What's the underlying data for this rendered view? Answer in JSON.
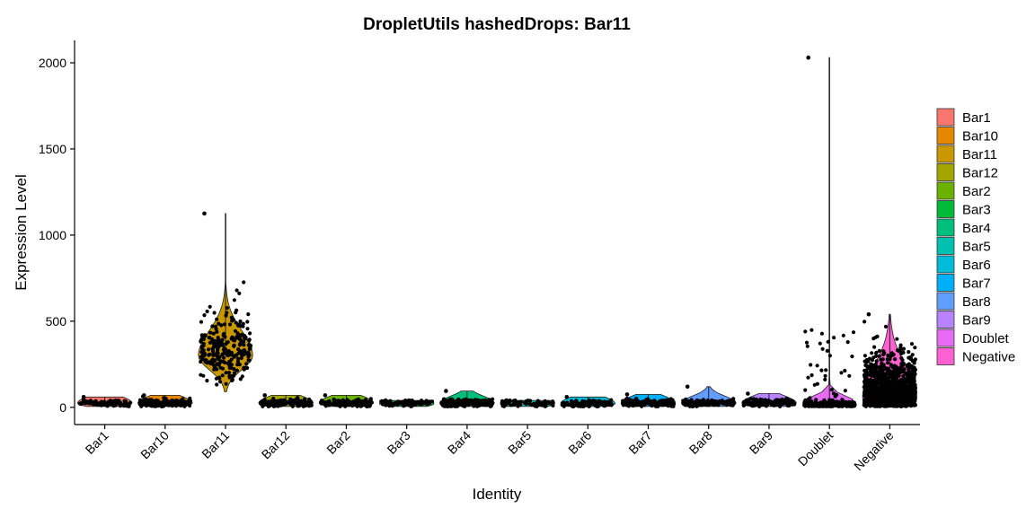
{
  "chart_data": {
    "type": "violin",
    "title": "DropletUtils hashedDrops: Bar11",
    "xlabel": "Identity",
    "ylabel": "Expression Level",
    "ylim": [
      -100,
      2130
    ],
    "y_ticks": [
      0,
      500,
      1000,
      1500,
      2000
    ],
    "categories": [
      "Bar1",
      "Bar10",
      "Bar11",
      "Bar12",
      "Bar2",
      "Bar3",
      "Bar4",
      "Bar5",
      "Bar6",
      "Bar7",
      "Bar8",
      "Bar9",
      "Doublet",
      "Negative"
    ],
    "colors": [
      "#F8766D",
      "#E58700",
      "#C99800",
      "#A3A500",
      "#6BB100",
      "#00BA38",
      "#00BF7D",
      "#00C0AF",
      "#00BCD8",
      "#00B0F6",
      "#619CFF",
      "#B983FF",
      "#E76BF3",
      "#FD61D1"
    ],
    "series": [
      {
        "name": "Bar1",
        "min": 5,
        "max": 60,
        "median": 25,
        "n": 100
      },
      {
        "name": "Bar10",
        "min": 5,
        "max": 70,
        "median": 25,
        "n": 180
      },
      {
        "name": "Bar11",
        "min": 90,
        "max": 1125,
        "median": 300,
        "n": 260
      },
      {
        "name": "Bar12",
        "min": 5,
        "max": 70,
        "median": 25,
        "n": 160
      },
      {
        "name": "Bar2",
        "min": 5,
        "max": 70,
        "median": 25,
        "n": 160
      },
      {
        "name": "Bar3",
        "min": 5,
        "max": 40,
        "median": 22,
        "n": 90
      },
      {
        "name": "Bar4",
        "min": 5,
        "max": 95,
        "median": 25,
        "n": 260
      },
      {
        "name": "Bar5",
        "min": 5,
        "max": 40,
        "median": 22,
        "n": 70
      },
      {
        "name": "Bar6",
        "min": 5,
        "max": 60,
        "median": 22,
        "n": 100
      },
      {
        "name": "Bar7",
        "min": 5,
        "max": 75,
        "median": 25,
        "n": 200
      },
      {
        "name": "Bar8",
        "min": 5,
        "max": 120,
        "median": 25,
        "n": 160
      },
      {
        "name": "Bar9",
        "min": 5,
        "max": 80,
        "median": 25,
        "n": 200
      },
      {
        "name": "Doublet",
        "min": 5,
        "max": 2030,
        "median": 25,
        "n": 300
      },
      {
        "name": "Negative",
        "min": 5,
        "max": 540,
        "median": 60,
        "n": 1200
      }
    ]
  },
  "legend": {
    "entries": [
      "Bar1",
      "Bar10",
      "Bar11",
      "Bar12",
      "Bar2",
      "Bar3",
      "Bar4",
      "Bar5",
      "Bar6",
      "Bar7",
      "Bar8",
      "Bar9",
      "Doublet",
      "Negative"
    ]
  }
}
